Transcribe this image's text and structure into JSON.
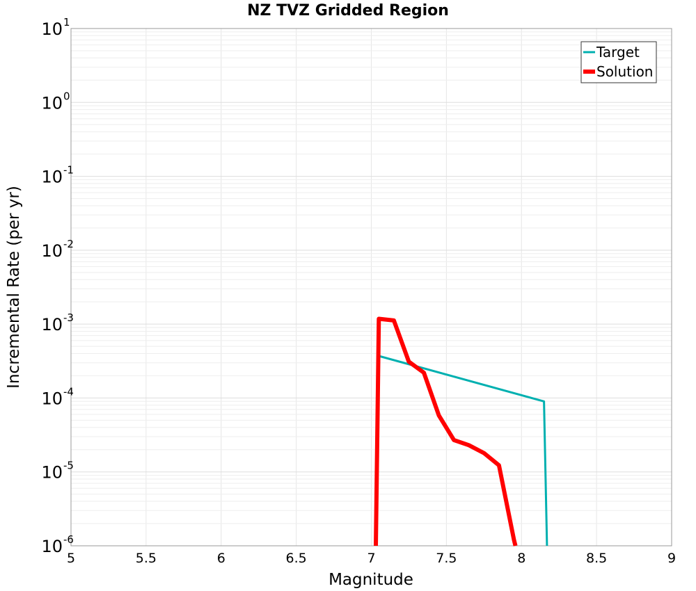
{
  "chart_data": {
    "type": "line",
    "title": "NZ TVZ Gridded Region",
    "xlabel": "Magnitude",
    "ylabel": "Incremental Rate (per yr)",
    "xlim": [
      5,
      9
    ],
    "ylim": [
      1e-06,
      10
    ],
    "yscale": "log",
    "grid": true,
    "legend_position": "top-right",
    "x_ticks": [
      "5",
      "5.5",
      "6",
      "6.5",
      "7",
      "7.5",
      "8",
      "8.5",
      "9"
    ],
    "y_ticks": [
      {
        "base": "10",
        "exp": "-6"
      },
      {
        "base": "10",
        "exp": "-5"
      },
      {
        "base": "10",
        "exp": "-4"
      },
      {
        "base": "10",
        "exp": "-3"
      },
      {
        "base": "10",
        "exp": "-2"
      },
      {
        "base": "10",
        "exp": "-1"
      },
      {
        "base": "10",
        "exp": "0"
      },
      {
        "base": "10",
        "exp": "1"
      }
    ],
    "series": [
      {
        "name": "Target",
        "color": "#00b0b0",
        "x": [
          7.05,
          8.15,
          8.17
        ],
        "y": [
          0.00037,
          9e-05,
          1e-06
        ]
      },
      {
        "name": "Solution",
        "color": "#ff0000",
        "x": [
          7.03,
          7.05,
          7.15,
          7.25,
          7.35,
          7.45,
          7.55,
          7.65,
          7.75,
          7.85,
          7.95,
          7.96
        ],
        "y": [
          1e-06,
          0.00118,
          0.00112,
          0.00031,
          0.00022,
          5.8e-05,
          2.7e-05,
          2.3e-05,
          1.8e-05,
          1.23e-05,
          1.2e-06,
          1e-06
        ]
      }
    ]
  }
}
